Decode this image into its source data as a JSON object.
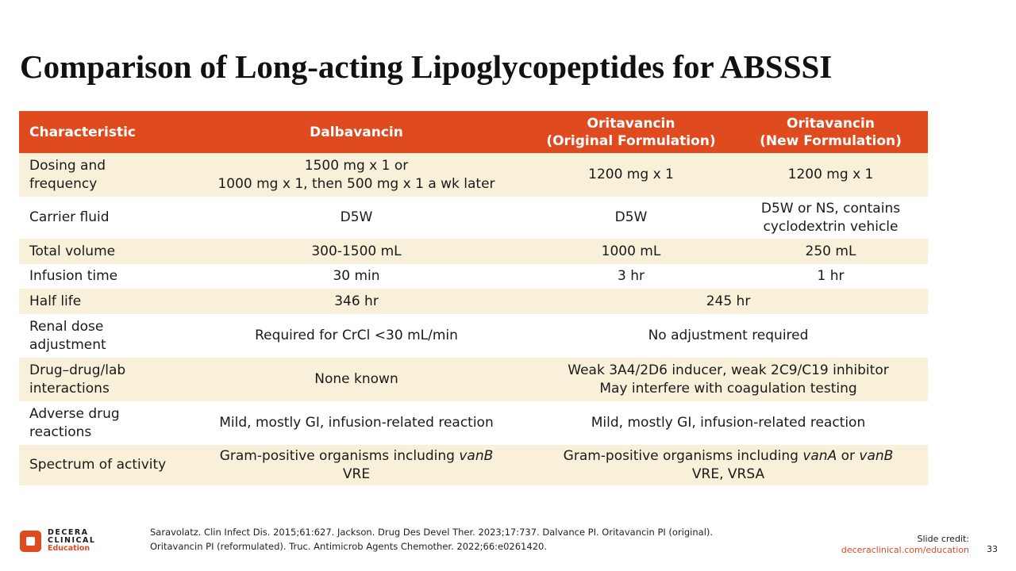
{
  "title": "Comparison of Long-acting Lipoglycopeptides for ABSSSI",
  "table": {
    "headers": [
      "Characteristic",
      "Dalbavancin",
      "Oritavancin\n(Original Formulation)",
      "Oritavancin\n(New Formulation)"
    ],
    "rows": [
      {
        "label": "Dosing and\nfrequency",
        "dalba": "1500 mg x 1 or\n1000 mg x 1, then 500 mg x 1 a wk later",
        "orig": "1200 mg x 1",
        "new": "1200 mg x 1"
      },
      {
        "label": "Carrier fluid",
        "dalba": "D5W",
        "orig": "D5W",
        "new": "D5W or NS, contains\ncyclodextrin vehicle"
      },
      {
        "label": "Total volume",
        "dalba": "300-1500 mL",
        "orig": "1000 mL",
        "new": "250 mL"
      },
      {
        "label": "Infusion time",
        "dalba": "30 min",
        "orig": "3 hr",
        "new": "1 hr"
      },
      {
        "label": "Half life",
        "dalba": "346 hr",
        "orita": "245 hr"
      },
      {
        "label": "Renal dose\nadjustment",
        "dalba": "Required for CrCl <30 mL/min",
        "orita": "No adjustment required"
      },
      {
        "label": "Drug–drug/lab\ninteractions",
        "dalba": "None known",
        "orita": "Weak 3A4/2D6 inducer, weak 2C9/C19 inhibitor\nMay interfere with coagulation testing"
      },
      {
        "label": "Adverse drug\nreactions",
        "dalba": "Mild, mostly GI, infusion-related reaction",
        "orita": "Mild, mostly GI, infusion-related reaction"
      },
      {
        "label": "Spectrum of activity",
        "dalba_a": "Gram-positive organisms including ",
        "dalba_i": "vanB",
        "dalba_b": "VRE",
        "orita_a": "Gram-positive organisms including ",
        "orita_i1": "vanA",
        "orita_or": " or ",
        "orita_i2": "vanB",
        "orita_b": "VRE, VRSA"
      }
    ]
  },
  "footer": {
    "refs_line1": "Saravolatz. Clin Infect Dis. 2015;61:627. Jackson. Drug Des Devel Ther. 2023;17:737. Dalvance PI. Oritavancin PI (original).",
    "refs_line2": "Oritavancin PI (reformulated). Truc. Antimicrob Agents Chemother. 2022;66:e0261420.",
    "logo_line1": "DECERA",
    "logo_line2": "CLINICAL",
    "logo_line3": "Education",
    "credit_label": "Slide credit:",
    "credit_url": "deceraclinical.com/education",
    "page_number": "33"
  },
  "colors": {
    "accent": "#e04a1f",
    "row_alt": "#f8f0d9"
  }
}
